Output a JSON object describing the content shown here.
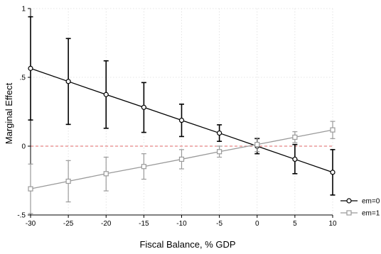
{
  "chart_data": {
    "type": "line",
    "title": "",
    "xlabel": "Fiscal Balance, % GDP",
    "ylabel": "Marginal Effect",
    "x": [
      -30,
      -25,
      -20,
      -15,
      -10,
      -5,
      0,
      5,
      10
    ],
    "xlim": [
      -30,
      10
    ],
    "ylim": [
      -0.5,
      1
    ],
    "xticks": [
      -30,
      -25,
      -20,
      -15,
      -10,
      -5,
      0,
      5,
      10
    ],
    "xtick_labels": [
      "-30",
      "-25",
      "-20",
      "-15",
      "-10",
      "-5",
      "0",
      "5",
      "10"
    ],
    "yticks": [
      -0.5,
      0,
      0.5,
      1
    ],
    "ytick_labels": [
      "-.5",
      "0",
      ".5",
      "1"
    ],
    "grid": true,
    "reference_line": {
      "y": 0,
      "color": "#e06666",
      "style": "dashed"
    },
    "legend": {
      "position": "right"
    },
    "series": [
      {
        "name": "em=0",
        "color": "#000000",
        "marker": "circle",
        "values": [
          0.565,
          0.47,
          0.375,
          0.282,
          0.188,
          0.095,
          0.0,
          -0.095,
          -0.19
        ],
        "ci_low": [
          0.19,
          0.158,
          0.13,
          0.1,
          0.07,
          0.035,
          -0.055,
          -0.2,
          -0.355
        ],
        "ci_high": [
          0.94,
          0.782,
          0.62,
          0.462,
          0.305,
          0.155,
          0.055,
          0.012,
          -0.025
        ]
      },
      {
        "name": "em=1",
        "color": "#9a9a9a",
        "marker": "square",
        "values": [
          -0.31,
          -0.255,
          -0.2,
          -0.148,
          -0.095,
          -0.04,
          0.012,
          0.065,
          0.118
        ],
        "ci_low": [
          -0.49,
          -0.405,
          -0.325,
          -0.24,
          -0.165,
          -0.08,
          -0.04,
          0.025,
          0.055
        ],
        "ci_high": [
          -0.13,
          -0.105,
          -0.08,
          -0.055,
          -0.025,
          0.0,
          0.06,
          0.105,
          0.18
        ]
      }
    ]
  }
}
